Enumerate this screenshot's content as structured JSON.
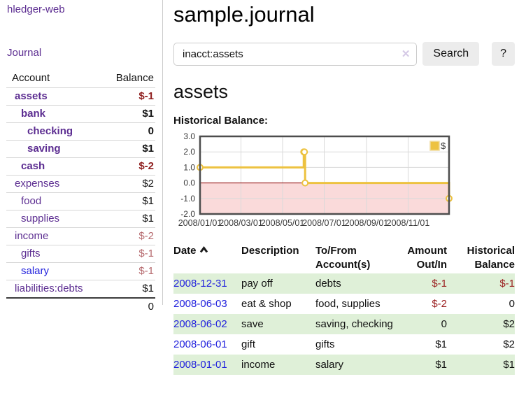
{
  "sidebar": {
    "brand": "hledger-web",
    "journal_link": "Journal",
    "account_header": "Account",
    "balance_header": "Balance",
    "accounts": [
      {
        "name": "assets",
        "indent": 1,
        "bold": true,
        "link_color": "purple",
        "balance": "$-1",
        "balance_style": "neg-strong"
      },
      {
        "name": "bank",
        "indent": 2,
        "bold": true,
        "link_color": "purple",
        "balance": "$1",
        "balance_style": "pos"
      },
      {
        "name": "checking",
        "indent": 3,
        "bold": true,
        "link_color": "purple",
        "balance": "0",
        "balance_style": "pos"
      },
      {
        "name": "saving",
        "indent": 3,
        "bold": true,
        "link_color": "purple",
        "balance": "$1",
        "balance_style": "pos"
      },
      {
        "name": "cash",
        "indent": 2,
        "bold": true,
        "link_color": "purple",
        "balance": "$-2",
        "balance_style": "neg-strong"
      },
      {
        "name": "expenses",
        "indent": 1,
        "bold": false,
        "link_color": "purple",
        "balance": "$2",
        "balance_style": "pos"
      },
      {
        "name": "food",
        "indent": 2,
        "bold": false,
        "link_color": "purple",
        "balance": "$1",
        "balance_style": "pos"
      },
      {
        "name": "supplies",
        "indent": 2,
        "bold": false,
        "link_color": "purple",
        "balance": "$1",
        "balance_style": "pos"
      },
      {
        "name": "income",
        "indent": 1,
        "bold": false,
        "link_color": "purple",
        "balance": "$-2",
        "balance_style": "neg-soft"
      },
      {
        "name": "gifts",
        "indent": 2,
        "bold": false,
        "link_color": "purple",
        "balance": "$-1",
        "balance_style": "neg-soft"
      },
      {
        "name": "salary",
        "indent": 2,
        "bold": false,
        "link_color": "blue",
        "balance": "$-1",
        "balance_style": "neg-soft"
      },
      {
        "name": "liabilities:debts",
        "indent": 1,
        "bold": false,
        "link_color": "purple",
        "balance": "$1",
        "balance_style": "pos"
      }
    ],
    "total": "0"
  },
  "header": {
    "title": "sample.journal"
  },
  "search": {
    "query": "inacct:assets",
    "clear_icon": "✕",
    "search_label": "Search",
    "help_label": "?"
  },
  "main": {
    "account_heading": "assets",
    "chart_label": "Historical Balance:"
  },
  "chart_data": {
    "type": "line",
    "steps": true,
    "title": "Historical Balance:",
    "legend": {
      "label": "$",
      "position": "top-right"
    },
    "series": [
      {
        "name": "$",
        "color": "#edc240",
        "points": [
          {
            "date": "2008-01-01",
            "day": 0,
            "value": 1
          },
          {
            "date": "2008-06-01",
            "day": 152,
            "value": 2
          },
          {
            "date": "2008-06-02",
            "day": 153,
            "value": 2
          },
          {
            "date": "2008-06-03",
            "day": 154,
            "value": 0
          },
          {
            "date": "2008-12-31",
            "day": 365,
            "value": -1
          }
        ]
      }
    ],
    "x_ticks": [
      {
        "label": "2008/01/01",
        "day": 0
      },
      {
        "label": "2008/03/01",
        "day": 60
      },
      {
        "label": "2008/05/01",
        "day": 121
      },
      {
        "label": "2008/07/01",
        "day": 182
      },
      {
        "label": "2008/09/01",
        "day": 244
      },
      {
        "label": "2008/11/01",
        "day": 305
      }
    ],
    "y_ticks": [
      3.0,
      2.0,
      1.0,
      0.0,
      -1.0,
      -2.0
    ],
    "ylim": [
      -2,
      3
    ],
    "xlim_days": [
      0,
      365
    ],
    "grid": true,
    "colors": {
      "negative_region": "#fadada",
      "zero_line": "#8b0000",
      "gridline": "#d9d9d9",
      "plot_border": "#4d4d4d",
      "marker_fill": "#ffffff"
    }
  },
  "register": {
    "columns": {
      "date": "Date",
      "description": "Description",
      "accounts_line1": "To/From",
      "accounts_line2": "Account(s)",
      "amount_line1": "Amount",
      "amount_line2": "Out/In",
      "balance_line1": "Historical",
      "balance_line2": "Balance"
    },
    "rows": [
      {
        "date": "2008-12-31",
        "description": "pay off",
        "accounts": "debts",
        "amount": "$-1",
        "amount_neg": true,
        "balance": "$-1",
        "balance_neg": true
      },
      {
        "date": "2008-06-03",
        "description": "eat & shop",
        "accounts": "food, supplies",
        "amount": "$-2",
        "amount_neg": true,
        "balance": "0",
        "balance_neg": false
      },
      {
        "date": "2008-06-02",
        "description": "save",
        "accounts": "saving, checking",
        "amount": "0",
        "amount_neg": false,
        "balance": "$2",
        "balance_neg": false
      },
      {
        "date": "2008-06-01",
        "description": "gift",
        "accounts": "gifts",
        "amount": "$1",
        "amount_neg": false,
        "balance": "$2",
        "balance_neg": false
      },
      {
        "date": "2008-01-01",
        "description": "income",
        "accounts": "salary",
        "amount": "$1",
        "amount_neg": false,
        "balance": "$1",
        "balance_neg": false
      }
    ]
  },
  "colors": {
    "link_purple": "#5c2d91",
    "link_blue": "#2222dd",
    "negative_strong": "#8f1e1e",
    "negative_soft": "#b66a6e",
    "table_negative": "#9c2222",
    "row_stripe_green": "#dff0d8",
    "series_yellow": "#edc240"
  }
}
